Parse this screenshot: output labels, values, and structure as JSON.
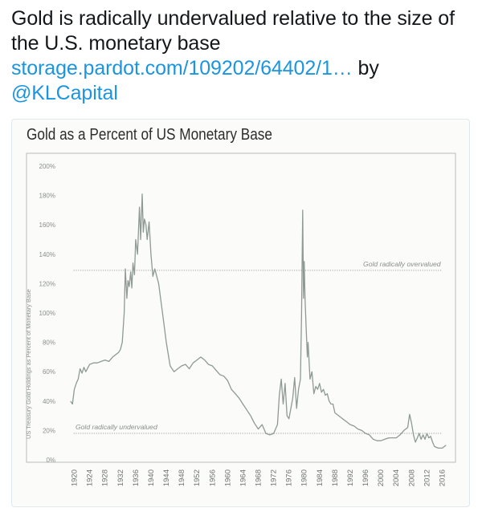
{
  "tweet": {
    "text": "Gold is radically undervalued relative to the size of the U.S. monetary base",
    "link": "storage.pardot.com/109202/64402/1…",
    "by": "by",
    "handle": "@KLCapital",
    "link_color": "#1b95e0"
  },
  "chart_data": {
    "type": "line",
    "title": "Gold as a Percent of US Monetary Base",
    "ylabel": "US Treasury Gold Holdings as Percent of Monetary Base",
    "xlabel": "",
    "xlim": [
      1918,
      2018
    ],
    "ylim": [
      0,
      200
    ],
    "x_ticks": [
      1920,
      1924,
      1928,
      1932,
      1936,
      1940,
      1944,
      1948,
      1952,
      1956,
      1960,
      1964,
      1968,
      1972,
      1976,
      1980,
      1984,
      1988,
      1992,
      1996,
      2000,
      2004,
      2008,
      2012,
      2016
    ],
    "y_ticks": [
      0,
      20,
      40,
      60,
      80,
      100,
      120,
      140,
      160,
      180,
      200
    ],
    "y_tick_labels": [
      "0%",
      "20%",
      "40%",
      "60%",
      "80%",
      "100%",
      "120%",
      "140%",
      "160%",
      "180%",
      "200%"
    ],
    "reference_lines": [
      {
        "label": "Gold radically overvalued",
        "y": 129
      },
      {
        "label": "Gold radically undervalued",
        "y": 18
      }
    ],
    "line_color": "#8e9a93",
    "series": [
      {
        "x": [
          1919,
          1919.5,
          1920,
          1920.5,
          1921,
          1921.5,
          1922,
          1922.5,
          1923,
          1924,
          1925,
          1926,
          1927,
          1928,
          1929,
          1930,
          1931,
          1931.5,
          1932,
          1932.5,
          1933,
          1933.3,
          1933.7,
          1934,
          1934.3,
          1934.7,
          1935,
          1935.3,
          1935.7,
          1936,
          1936.5,
          1937,
          1937.3,
          1937.7,
          1938,
          1938.3,
          1938.7,
          1939,
          1939.5,
          1940,
          1940.5,
          1941,
          1942,
          1943,
          1944,
          1945,
          1946,
          1947,
          1948,
          1949,
          1950,
          1951,
          1952,
          1953,
          1954,
          1955,
          1956,
          1957,
          1958,
          1959,
          1960,
          1961,
          1962,
          1963,
          1964,
          1965,
          1966,
          1967,
          1968,
          1969,
          1970,
          1971,
          1972,
          1973,
          1973.5,
          1974,
          1974.5,
          1975,
          1975.5,
          1976,
          1977,
          1977.5,
          1978,
          1978.5,
          1979,
          1979.3,
          1979.6,
          1979.8,
          1980,
          1980.2,
          1980.5,
          1980.8,
          1981,
          1981.5,
          1982,
          1982.5,
          1983,
          1983.5,
          1984,
          1984.5,
          1985,
          1985.5,
          1986,
          1986.5,
          1987,
          1987.5,
          1988,
          1989,
          1990,
          1991,
          1992,
          1993,
          1994,
          1995,
          1996,
          1997,
          1998,
          1999,
          2000,
          2001,
          2002,
          2003,
          2004,
          2005,
          2006,
          2007,
          2007.5,
          2008,
          2008.5,
          2009,
          2009.5,
          2010,
          2010.5,
          2011,
          2011.5,
          2012,
          2012.5,
          2013,
          2013.5,
          2014,
          2015,
          2016,
          2017
        ],
        "values": [
          40,
          38,
          48,
          52,
          55,
          62,
          59,
          63,
          60,
          65,
          66,
          66,
          67,
          68,
          67,
          70,
          72,
          73,
          75,
          80,
          100,
          130,
          110,
          122,
          118,
          128,
          117,
          134,
          126,
          150,
          140,
          172,
          150,
          181,
          155,
          164,
          160,
          150,
          162,
          140,
          125,
          130,
          120,
          100,
          80,
          64,
          60,
          62,
          64,
          65,
          62,
          66,
          68,
          70,
          68,
          65,
          64,
          61,
          58,
          57,
          54,
          48,
          45,
          42,
          38,
          34,
          30,
          25,
          21,
          24,
          18,
          17,
          18,
          24,
          44,
          55,
          38,
          52,
          30,
          28,
          42,
          56,
          35,
          48,
          55,
          100,
          170,
          110,
          135,
          110,
          90,
          70,
          80,
          55,
          60,
          45,
          50,
          48,
          52,
          46,
          48,
          44,
          45,
          40,
          38,
          38,
          32,
          30,
          28,
          26,
          24,
          23,
          21,
          20,
          18,
          17,
          14,
          13,
          13,
          14,
          15,
          15,
          15,
          17,
          20,
          22,
          31,
          25,
          17,
          12,
          15,
          18,
          14,
          17,
          14,
          18,
          15,
          16,
          12,
          9,
          8,
          8,
          10
        ]
      }
    ]
  }
}
